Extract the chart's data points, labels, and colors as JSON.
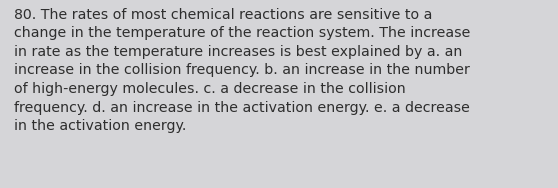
{
  "lines": [
    "80. The rates of most chemical reactions are sensitive to a",
    "change in the temperature of the reaction system. The increase",
    "in rate as the temperature increases is best explained by a. an",
    "increase in the collision frequency. b. an increase in the number",
    "of high-energy molecules. c. a decrease in the collision",
    "frequency. d. an increase in the activation energy. e. a decrease",
    "in the activation energy."
  ],
  "background_color": "#d5d5d8",
  "text_color": "#2e2e2e",
  "font_size": 10.2,
  "font_family": "DejaVu Sans",
  "fig_width": 5.58,
  "fig_height": 1.88,
  "dpi": 100
}
